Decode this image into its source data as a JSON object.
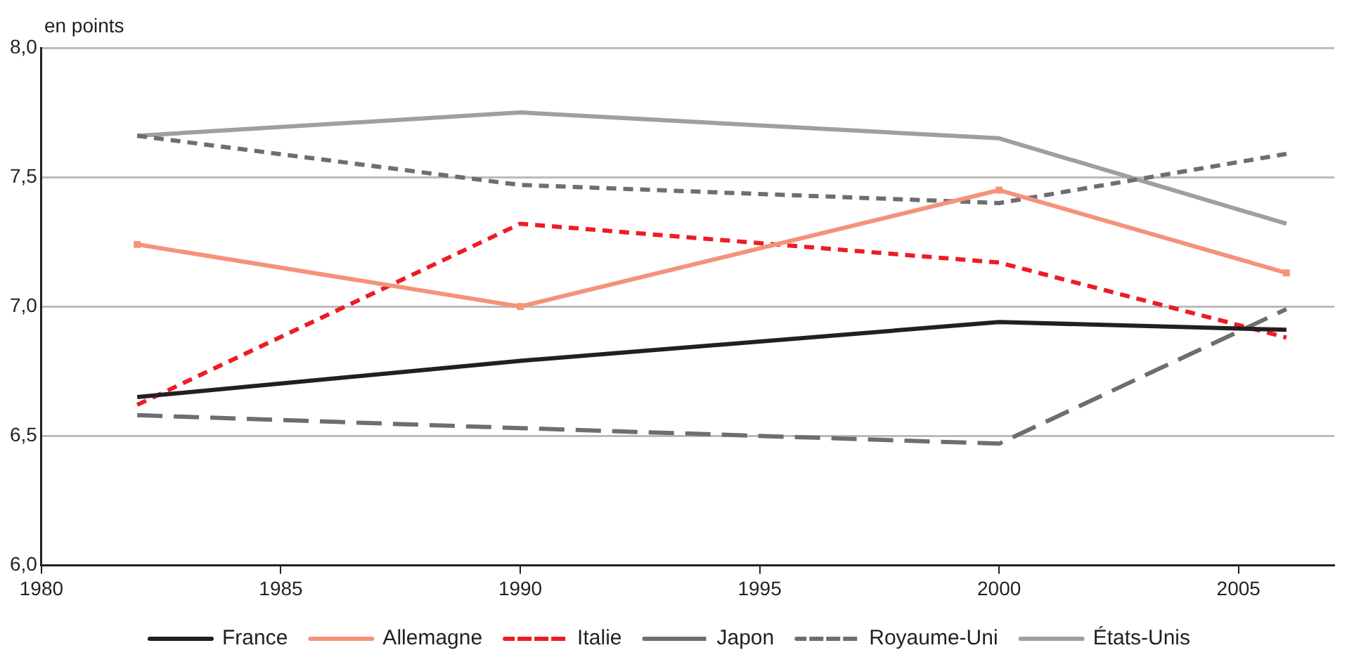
{
  "chart_data": {
    "type": "line",
    "ylabel": "en points",
    "xlim": [
      1980,
      2007
    ],
    "xticks": [
      1980,
      1985,
      1990,
      1995,
      2000,
      2005
    ],
    "ylim": [
      6,
      8
    ],
    "yticks": [
      {
        "value": 6,
        "label": "6,0"
      },
      {
        "value": 6.5,
        "label": "6,5"
      },
      {
        "value": 7,
        "label": "7,0"
      },
      {
        "value": 7.5,
        "label": "7,5"
      },
      {
        "value": 8,
        "label": "8,0"
      }
    ],
    "x": [
      1982,
      1990,
      2000,
      2006
    ],
    "grid": "y",
    "legend": "bottom",
    "marker": "none",
    "line_style": "solid",
    "series": [
      {
        "name": "France",
        "color": "#231f20",
        "values": [
          6.65,
          6.79,
          6.94,
          6.91
        ]
      },
      {
        "name": "Allemagne",
        "color": "#f4937a",
        "marker": "square",
        "values": [
          7.24,
          7.0,
          7.45,
          7.13
        ]
      },
      {
        "name": "Italie",
        "color": "#ed1c24",
        "line_style": "dotted",
        "values": [
          6.62,
          7.32,
          7.17,
          6.88
        ]
      },
      {
        "name": "Japon",
        "color": "#6d6e71",
        "line_style": "dashed",
        "values": [
          6.58,
          6.53,
          6.47,
          6.99
        ]
      },
      {
        "name": "Royaume-Uni",
        "color": "#6d6e71",
        "line_style": "dotted",
        "values": [
          7.66,
          7.47,
          7.4,
          7.59
        ]
      },
      {
        "name": "États-Unis",
        "color": "#9d9fa2",
        "values": [
          7.66,
          7.75,
          7.65,
          7.32
        ]
      }
    ]
  }
}
